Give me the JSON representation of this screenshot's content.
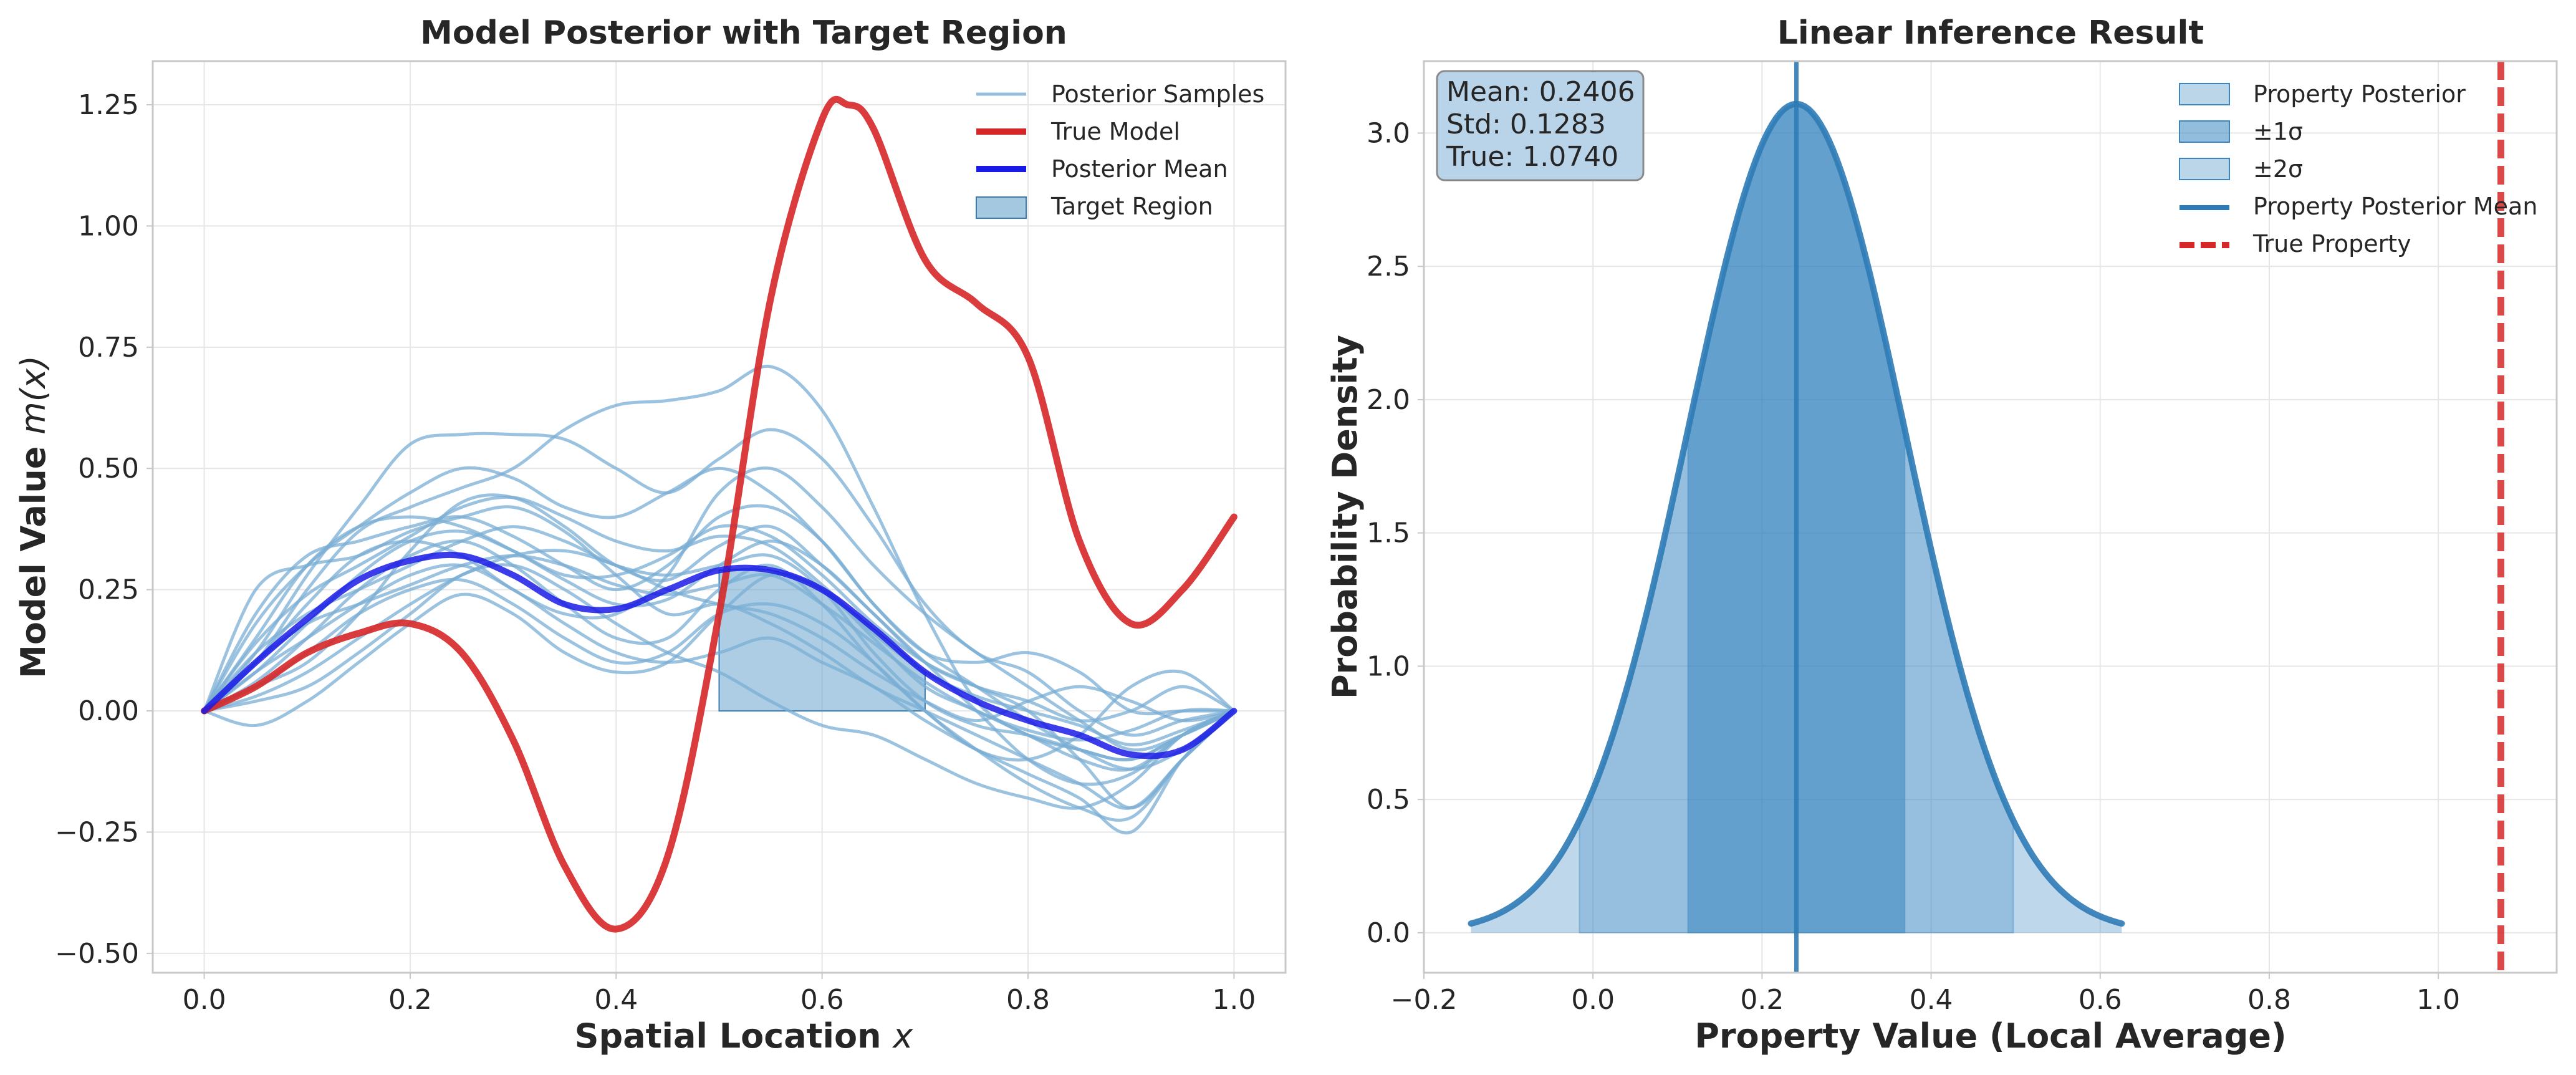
{
  "colors": {
    "samples": "#7aaed4",
    "true_model": "#d62728",
    "posterior_mean": "#1a1ae6",
    "target_region": "#5b9bc9",
    "property_fill": "#3b86c1",
    "property_line": "#2d7bb6",
    "true_property": "#d62728",
    "stats_box": "#b5d1e8"
  },
  "chart_data": [
    {
      "type": "line",
      "title": "Model Posterior with Target Region",
      "xlabel": "Spatial Location",
      "xlabel_var": "x",
      "ylabel": "Model Value",
      "ylabel_var": "m(x)",
      "xlim": [
        -0.05,
        1.05
      ],
      "ylim": [
        -0.54,
        1.34
      ],
      "xticks": [
        0.0,
        0.2,
        0.4,
        0.6,
        0.8,
        1.0
      ],
      "xtick_labels": [
        "0.0",
        "0.2",
        "0.4",
        "0.6",
        "0.8",
        "1.0"
      ],
      "yticks": [
        -0.5,
        -0.25,
        0.0,
        0.25,
        0.5,
        0.75,
        1.0,
        1.25
      ],
      "ytick_labels": [
        "−0.50",
        "−0.25",
        "0.00",
        "0.25",
        "0.50",
        "0.75",
        "1.00",
        "1.25"
      ],
      "grid": true,
      "legend_position": "top-right",
      "legend": [
        "Posterior Samples",
        "True Model",
        "Posterior Mean",
        "Target Region"
      ],
      "x": [
        0.0,
        0.05,
        0.1,
        0.15,
        0.2,
        0.25,
        0.3,
        0.35,
        0.4,
        0.45,
        0.5,
        0.55,
        0.6,
        0.65,
        0.7,
        0.75,
        0.8,
        0.85,
        0.9,
        0.95,
        1.0
      ],
      "true_model": {
        "name": "True Model",
        "x": [
          0.0,
          0.05,
          0.1,
          0.15,
          0.2,
          0.25,
          0.3,
          0.35,
          0.4,
          0.45,
          0.5,
          0.55,
          0.6,
          0.625,
          0.65,
          0.7,
          0.75,
          0.8,
          0.85,
          0.9,
          0.95,
          1.0
        ],
        "values": [
          0.0,
          0.05,
          0.12,
          0.16,
          0.18,
          0.12,
          -0.06,
          -0.32,
          -0.45,
          -0.3,
          0.2,
          0.85,
          1.22,
          1.25,
          1.2,
          0.93,
          0.84,
          0.73,
          0.35,
          0.18,
          0.25,
          0.4
        ]
      },
      "posterior_mean": {
        "name": "Posterior Mean",
        "values": [
          0.0,
          0.1,
          0.19,
          0.27,
          0.31,
          0.32,
          0.28,
          0.22,
          0.21,
          0.25,
          0.29,
          0.29,
          0.25,
          0.17,
          0.08,
          0.02,
          -0.02,
          -0.05,
          -0.09,
          -0.08,
          0.0
        ]
      },
      "target_region": {
        "name": "Target Region",
        "x_range": [
          0.5,
          0.7
        ]
      },
      "samples": {
        "name": "Posterior Samples",
        "series": [
          [
            0.0,
            0.25,
            0.3,
            0.32,
            0.37,
            0.4,
            0.42,
            0.37,
            0.28,
            0.2,
            0.22,
            0.18,
            0.12,
            0.05,
            0.0,
            -0.05,
            -0.1,
            -0.15,
            -0.2,
            -0.1,
            0.0
          ],
          [
            0.0,
            0.12,
            0.28,
            0.42,
            0.55,
            0.57,
            0.57,
            0.56,
            0.5,
            0.45,
            0.52,
            0.58,
            0.52,
            0.38,
            0.22,
            0.12,
            0.08,
            0.0,
            -0.05,
            -0.02,
            0.0
          ],
          [
            0.0,
            0.1,
            0.25,
            0.37,
            0.42,
            0.46,
            0.5,
            0.58,
            0.63,
            0.64,
            0.66,
            0.71,
            0.62,
            0.42,
            0.2,
            0.02,
            -0.05,
            -0.08,
            -0.1,
            -0.05,
            0.0
          ],
          [
            0.0,
            0.05,
            0.1,
            0.2,
            0.33,
            0.43,
            0.44,
            0.38,
            0.3,
            0.27,
            0.34,
            0.38,
            0.3,
            0.2,
            0.1,
            0.0,
            -0.1,
            -0.15,
            -0.13,
            -0.05,
            0.0
          ],
          [
            0.0,
            0.02,
            0.05,
            0.12,
            0.2,
            0.28,
            0.3,
            0.25,
            0.18,
            0.12,
            0.08,
            0.02,
            -0.03,
            -0.05,
            -0.1,
            -0.15,
            -0.18,
            -0.2,
            -0.15,
            -0.05,
            0.0
          ],
          [
            0.0,
            0.08,
            0.15,
            0.22,
            0.28,
            0.3,
            0.25,
            0.18,
            0.12,
            0.1,
            0.12,
            0.15,
            0.1,
            0.05,
            -0.02,
            -0.08,
            -0.13,
            -0.18,
            -0.25,
            -0.1,
            0.0
          ],
          [
            0.0,
            0.15,
            0.3,
            0.38,
            0.4,
            0.38,
            0.33,
            0.27,
            0.22,
            0.23,
            0.3,
            0.35,
            0.3,
            0.2,
            0.1,
            0.05,
            0.02,
            -0.02,
            0.0,
            0.05,
            0.0
          ],
          [
            0.0,
            0.1,
            0.22,
            0.32,
            0.35,
            0.32,
            0.25,
            0.2,
            0.2,
            0.28,
            0.45,
            0.5,
            0.42,
            0.3,
            0.2,
            0.12,
            0.05,
            -0.02,
            -0.08,
            -0.05,
            0.0
          ],
          [
            0.0,
            -0.03,
            0.02,
            0.1,
            0.18,
            0.24,
            0.2,
            0.12,
            0.08,
            0.1,
            0.2,
            0.28,
            0.25,
            0.15,
            0.05,
            0.0,
            -0.05,
            -0.1,
            -0.12,
            -0.05,
            0.0
          ],
          [
            0.0,
            0.2,
            0.32,
            0.35,
            0.38,
            0.4,
            0.36,
            0.3,
            0.25,
            0.3,
            0.4,
            0.42,
            0.35,
            0.22,
            0.12,
            0.1,
            0.12,
            0.08,
            0.0,
            0.0,
            0.0
          ],
          [
            0.0,
            0.05,
            0.12,
            0.2,
            0.25,
            0.27,
            0.22,
            0.15,
            0.1,
            0.12,
            0.2,
            0.22,
            0.18,
            0.1,
            0.0,
            -0.08,
            -0.1,
            -0.05,
            0.05,
            0.08,
            0.0
          ],
          [
            0.0,
            0.08,
            0.18,
            0.28,
            0.35,
            0.37,
            0.33,
            0.28,
            0.28,
            0.32,
            0.38,
            0.36,
            0.28,
            0.18,
            0.1,
            0.05,
            0.0,
            -0.1,
            -0.2,
            -0.1,
            0.0
          ],
          [
            0.0,
            0.12,
            0.2,
            0.25,
            0.3,
            0.35,
            0.38,
            0.35,
            0.3,
            0.28,
            0.3,
            0.32,
            0.25,
            0.12,
            0.02,
            -0.03,
            -0.05,
            -0.08,
            -0.1,
            -0.05,
            0.0
          ],
          [
            0.0,
            0.03,
            0.08,
            0.15,
            0.22,
            0.28,
            0.32,
            0.33,
            0.3,
            0.25,
            0.22,
            0.2,
            0.15,
            0.08,
            0.02,
            -0.02,
            0.02,
            0.05,
            0.02,
            -0.02,
            0.0
          ],
          [
            0.0,
            0.18,
            0.3,
            0.38,
            0.45,
            0.5,
            0.48,
            0.42,
            0.4,
            0.45,
            0.5,
            0.45,
            0.35,
            0.22,
            0.12,
            0.05,
            -0.02,
            -0.08,
            -0.12,
            -0.08,
            0.0
          ],
          [
            0.0,
            0.06,
            0.15,
            0.25,
            0.32,
            0.35,
            0.3,
            0.22,
            0.15,
            0.15,
            0.25,
            0.3,
            0.22,
            0.1,
            0.0,
            -0.08,
            -0.15,
            -0.2,
            -0.22,
            -0.1,
            0.0
          ],
          [
            0.0,
            0.1,
            0.18,
            0.22,
            0.26,
            0.3,
            0.32,
            0.3,
            0.26,
            0.24,
            0.26,
            0.28,
            0.22,
            0.14,
            0.06,
            0.0,
            -0.04,
            -0.06,
            -0.04,
            0.0,
            0.0
          ],
          [
            0.0,
            0.14,
            0.24,
            0.3,
            0.36,
            0.42,
            0.44,
            0.4,
            0.35,
            0.33,
            0.36,
            0.34,
            0.26,
            0.16,
            0.08,
            0.03,
            0.0,
            -0.03,
            -0.07,
            -0.04,
            0.0
          ]
        ]
      }
    },
    {
      "type": "area",
      "title": "Linear Inference Result",
      "xlabel": "Property Value (Local Average)",
      "ylabel": "Probability Density",
      "xlim": [
        -0.2,
        1.14
      ],
      "ylim": [
        -0.15,
        3.27
      ],
      "xticks": [
        -0.2,
        0.0,
        0.2,
        0.4,
        0.6,
        0.8,
        1.0
      ],
      "xtick_labels": [
        "−0.2",
        "0.0",
        "0.2",
        "0.4",
        "0.6",
        "0.8",
        "1.0"
      ],
      "yticks": [
        0.0,
        0.5,
        1.0,
        1.5,
        2.0,
        2.5,
        3.0
      ],
      "ytick_labels": [
        "0.0",
        "0.5",
        "1.0",
        "1.5",
        "2.0",
        "2.5",
        "3.0"
      ],
      "grid": true,
      "legend_position": "top-right",
      "legend": [
        "Property Posterior",
        "±1σ",
        "±2σ",
        "Property Posterior Mean",
        "True Property"
      ],
      "posterior": {
        "distribution": "normal",
        "mean": 0.2406,
        "std": 0.1283,
        "range_sigma": 3
      },
      "true_value": 1.074,
      "stats": [
        "Mean: 0.2406",
        "Std: 0.1283",
        "True: 1.0740"
      ]
    }
  ]
}
